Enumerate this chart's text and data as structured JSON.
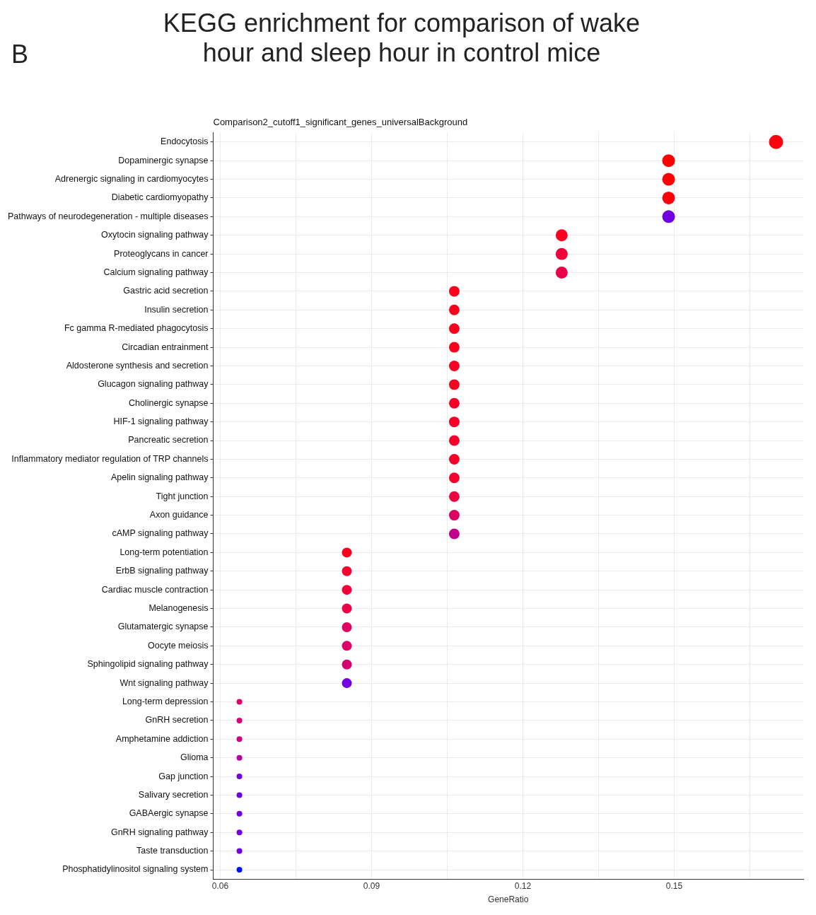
{
  "chart_data": {
    "type": "bubble",
    "title": "KEGG enrichment for comparison of wake hour and sleep hour in control mice",
    "subtitle": "Comparison2_cutoff1_significant_genes_universalBackground",
    "xlabel": "GeneRatio",
    "annotations": [
      "B"
    ],
    "orientation": "horizontal",
    "categories": [
      "Endocytosis",
      "Dopaminergic synapse",
      "Adrenergic signaling in cardiomyocytes",
      "Diabetic cardiomyopathy",
      "Pathways of neurodegeneration - multiple diseases",
      "Oxytocin signaling pathway",
      "Proteoglycans in cancer",
      "Calcium signaling pathway",
      "Gastric acid secretion",
      "Insulin secretion",
      "Fc gamma R-mediated phagocytosis",
      "Circadian entrainment",
      "Aldosterone synthesis and secretion",
      "Glucagon signaling pathway",
      "Cholinergic synapse",
      "HIF-1 signaling pathway",
      "Pancreatic secretion",
      "Inflammatory mediator regulation of TRP channels",
      "Apelin signaling pathway",
      "Tight junction",
      "Axon guidance",
      "cAMP signaling pathway",
      "Long-term potentiation",
      "ErbB signaling pathway",
      "Cardiac muscle contraction",
      "Melanogenesis",
      "Glutamatergic synapse",
      "Oocyte meiosis",
      "Sphingolipid signaling pathway",
      "Wnt signaling pathway",
      "Long-term depression",
      "GnRH secretion",
      "Amphetamine addiction",
      "Glioma",
      "Gap junction",
      "Salivary secretion",
      "GABAergic synapse",
      "GnRH signaling pathway",
      "Taste transduction",
      "Phosphatidylinositol signaling system"
    ],
    "values": [
      0.1702,
      0.1489,
      0.1489,
      0.1489,
      0.1489,
      0.1277,
      0.1277,
      0.1277,
      0.1064,
      0.1064,
      0.1064,
      0.1064,
      0.1064,
      0.1064,
      0.1064,
      0.1064,
      0.1064,
      0.1064,
      0.1064,
      0.1064,
      0.1064,
      0.1064,
      0.0851,
      0.0851,
      0.0851,
      0.0851,
      0.0851,
      0.0851,
      0.0851,
      0.0851,
      0.0638,
      0.0638,
      0.0638,
      0.0638,
      0.0638,
      0.0638,
      0.0638,
      0.0638,
      0.0638,
      0.0638
    ],
    "sizes": [
      1,
      0.81,
      0.81,
      0.81,
      0.81,
      0.72,
      0.72,
      0.72,
      0.56,
      0.56,
      0.56,
      0.56,
      0.56,
      0.56,
      0.56,
      0.56,
      0.56,
      0.56,
      0.56,
      0.56,
      0.56,
      0.56,
      0.49,
      0.49,
      0.49,
      0.49,
      0.49,
      0.49,
      0.49,
      0.49,
      0.16,
      0.16,
      0.16,
      0.16,
      0.16,
      0.16,
      0.16,
      0.16,
      0.16,
      0.16
    ],
    "colors": [
      "#ff0010",
      "#ff0000",
      "#ff0004",
      "#ff0008",
      "#7000e0",
      "#fd0020",
      "#f00038",
      "#e8004a",
      "#fb0018",
      "#fb0018",
      "#fb001c",
      "#fa001c",
      "#fa0020",
      "#f90020",
      "#f80024",
      "#f80026",
      "#f70028",
      "#f6002a",
      "#f5002e",
      "#ec0040",
      "#dc0060",
      "#c0008c",
      "#fc0020",
      "#f80030",
      "#f40038",
      "#ec0048",
      "#e00060",
      "#dc0068",
      "#d40070",
      "#7000e0",
      "#dc0068",
      "#d80070",
      "#cc0080",
      "#b800a0",
      "#7000e0",
      "#7000e0",
      "#7000e0",
      "#7000e0",
      "#7000e4",
      "#0010ff"
    ],
    "xlim": [
      0.0586,
      0.1756
    ],
    "xticks": [
      0.06,
      {
        "value": 0.075,
        "label": null
      },
      0.09,
      {
        "value": 0.105,
        "label": null
      },
      0.12,
      {
        "value": 0.135,
        "label": null
      },
      0.15,
      {
        "value": 0.165,
        "label": null
      }
    ],
    "grid": true,
    "legend": false,
    "marker": "circle"
  }
}
